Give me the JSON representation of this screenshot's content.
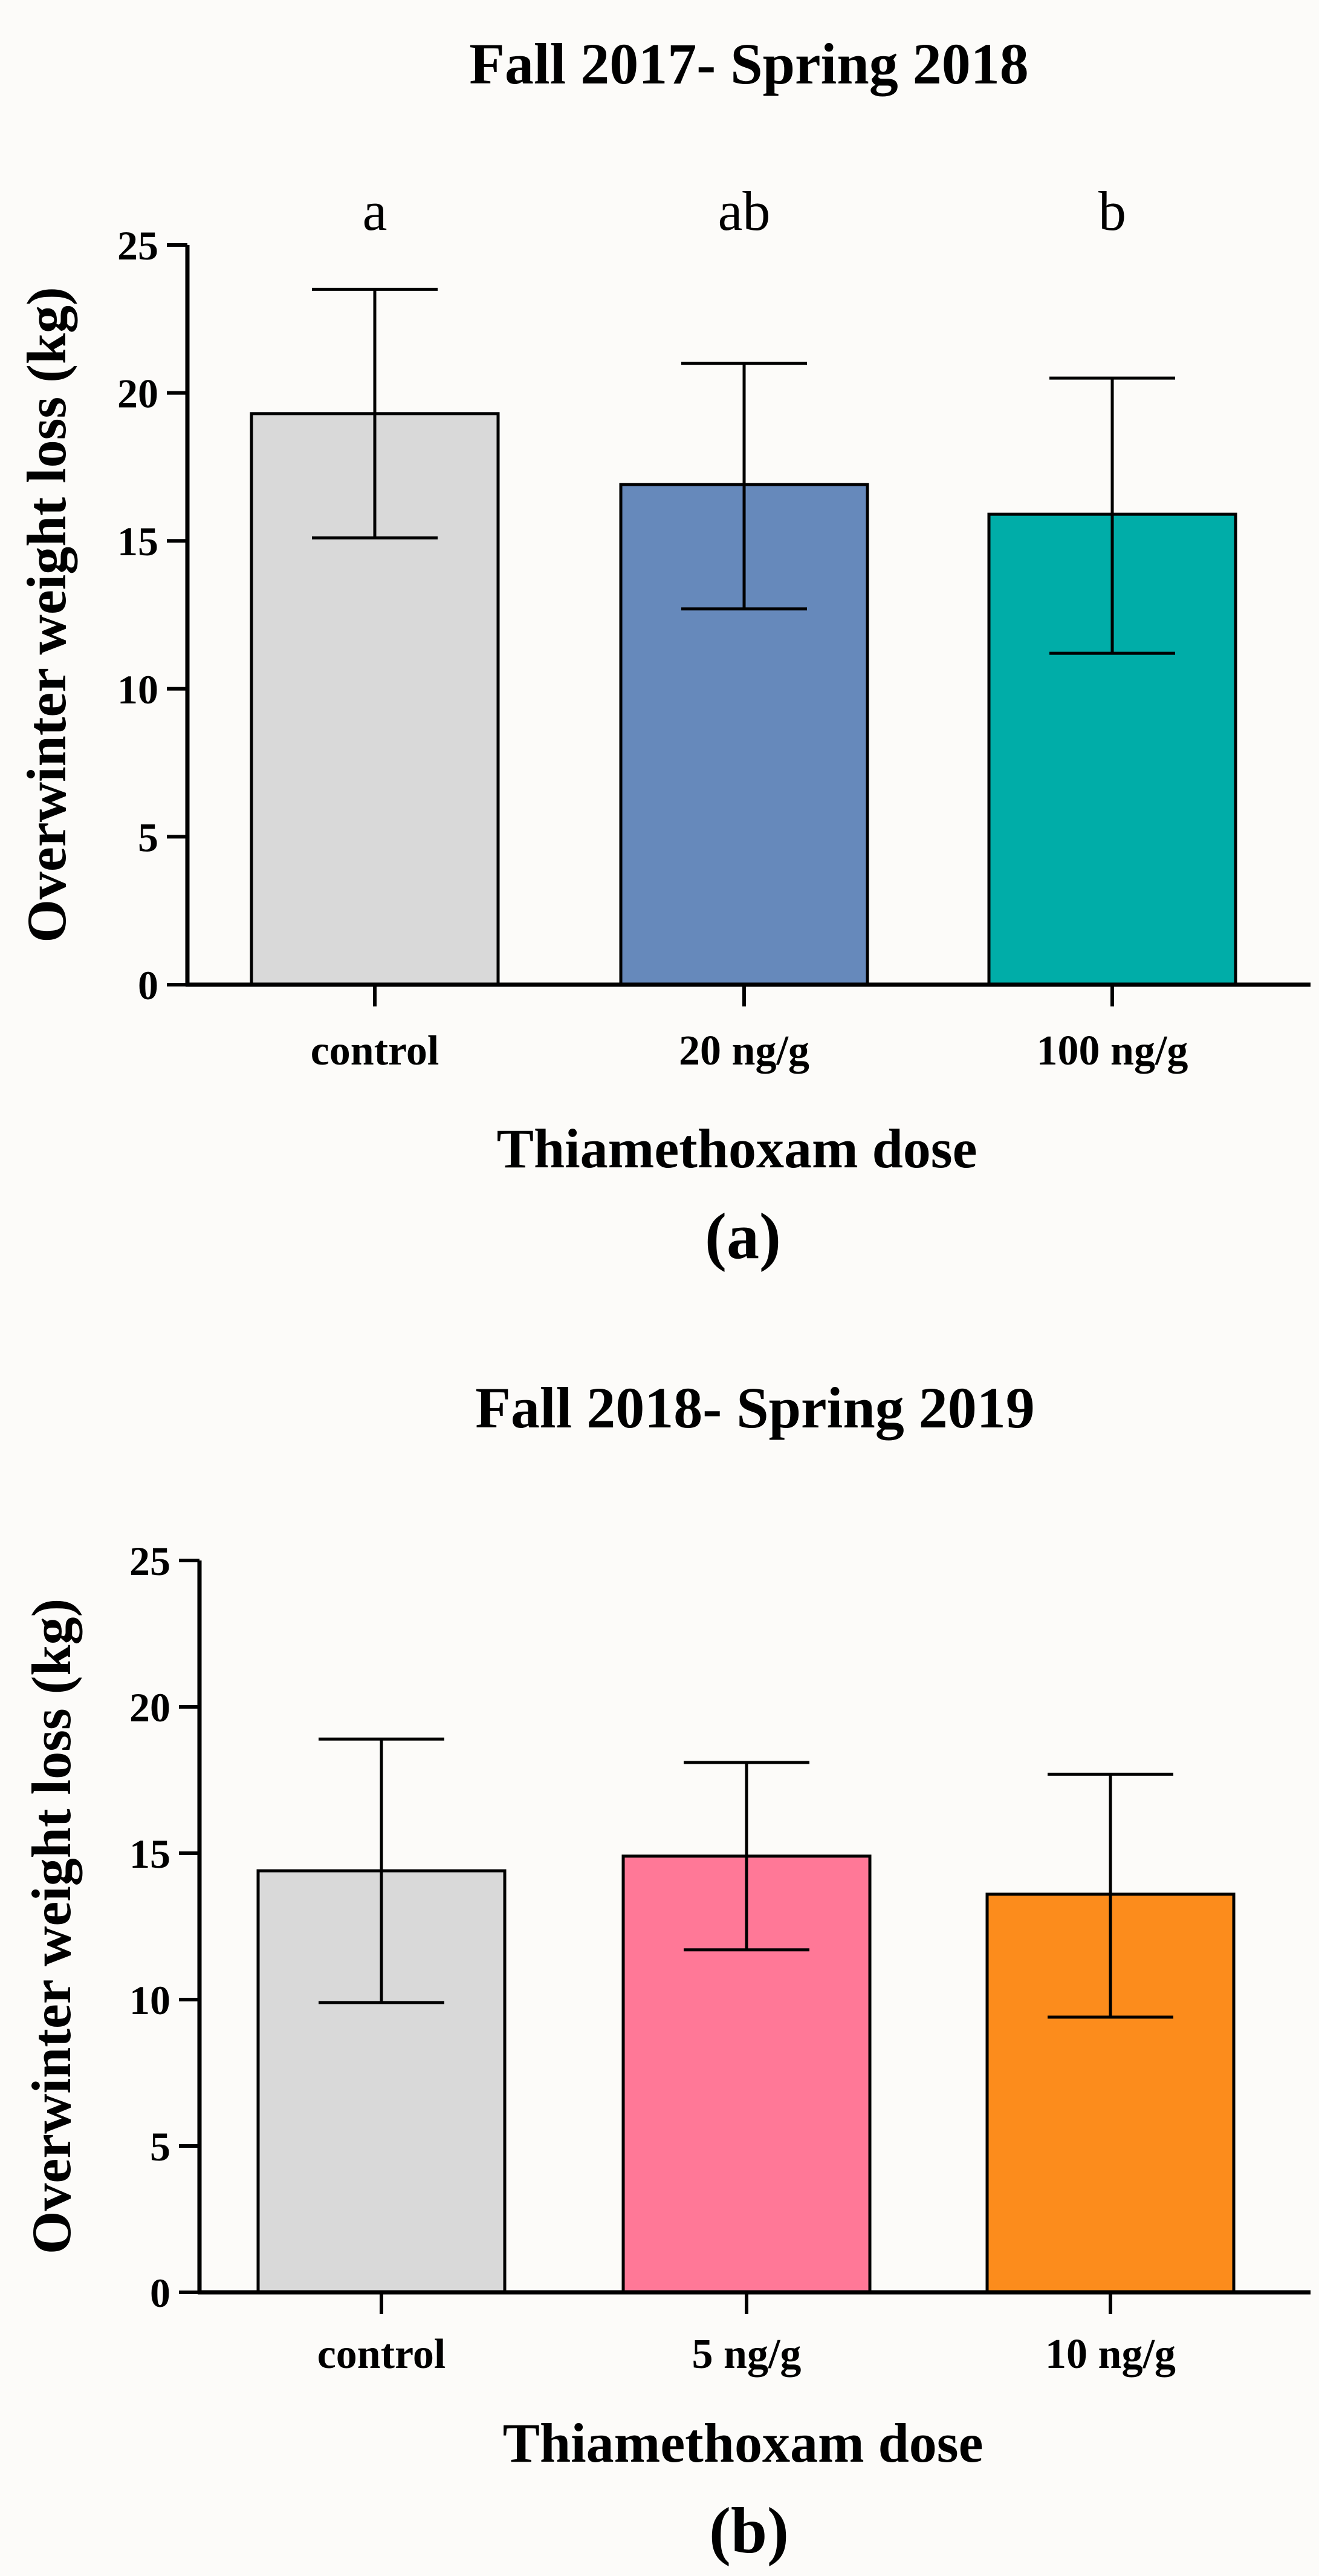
{
  "chart_data": [
    {
      "type": "bar",
      "title": "Fall 2017- Spring 2018",
      "xlabel": "Thiamethoxam dose",
      "ylabel": "Overwinter weight loss (kg)",
      "ylim": [
        0,
        25
      ],
      "yticks": [
        0,
        5,
        10,
        15,
        20,
        25
      ],
      "categories": [
        "control",
        "20 ng/g",
        "100 ng/g"
      ],
      "values": [
        19.3,
        16.9,
        15.9
      ],
      "error_low": [
        15.1,
        12.7,
        11.2
      ],
      "error_high": [
        23.5,
        21.0,
        20.5
      ],
      "significance_letters": [
        "a",
        "ab",
        "b"
      ],
      "colors": [
        "#d9d9d9",
        "#6689bb",
        "#00ada8"
      ],
      "panel_label": "(a)",
      "grid": false
    },
    {
      "type": "bar",
      "title": "Fall 2018- Spring 2019",
      "xlabel": "Thiamethoxam dose",
      "ylabel": "Overwinter weight loss (kg)",
      "ylim": [
        0,
        25
      ],
      "yticks": [
        0,
        5,
        10,
        15,
        20,
        25
      ],
      "categories": [
        "control",
        "5 ng/g",
        "10 ng/g"
      ],
      "values": [
        14.4,
        14.9,
        13.6
      ],
      "error_low": [
        9.9,
        11.7,
        9.4
      ],
      "error_high": [
        18.9,
        18.1,
        17.7
      ],
      "significance_letters": [],
      "colors": [
        "#d9d9d9",
        "#ff7897",
        "#fc8c1c"
      ],
      "panel_label": "(b)",
      "grid": false
    }
  ]
}
